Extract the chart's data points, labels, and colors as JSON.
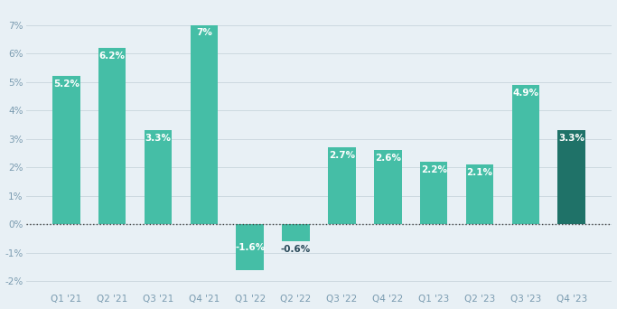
{
  "categories": [
    "Q1 '21",
    "Q2 '21",
    "Q3 '21",
    "Q4 '21",
    "Q1 '22",
    "Q2 '22",
    "Q3 '22",
    "Q4 '22",
    "Q1 '23",
    "Q2 '23",
    "Q3 '23",
    "Q4 '23"
  ],
  "values": [
    5.2,
    6.2,
    3.3,
    7.0,
    -1.6,
    -0.6,
    2.7,
    2.6,
    2.2,
    2.1,
    4.9,
    3.3
  ],
  "labels": [
    "5.2%",
    "6.2%",
    "3.3%",
    "7%",
    "-1.6%",
    "-0.6%",
    "2.7%",
    "2.6%",
    "2.2%",
    "2.1%",
    "4.9%",
    "3.3%"
  ],
  "bar_colors": [
    "#45bea6",
    "#45bea6",
    "#45bea6",
    "#45bea6",
    "#45bea6",
    "#45bea6",
    "#45bea6",
    "#45bea6",
    "#45bea6",
    "#45bea6",
    "#45bea6",
    "#1f7268"
  ],
  "label_inside_color": "white",
  "label_outside_color": "#2a4a5a",
  "background_color": "#e8f0f5",
  "ylim": [
    -2.3,
    7.7
  ],
  "yticks": [
    -2,
    -1,
    0,
    1,
    2,
    3,
    4,
    5,
    6,
    7
  ],
  "ytick_labels": [
    "-2%",
    "-1%",
    "0%",
    "1%",
    "2%",
    "3%",
    "4%",
    "5%",
    "6%",
    "7%"
  ],
  "grid_color": "#cdd9e0",
  "zero_line_color": "#444444",
  "tick_color": "#7a9bb0",
  "label_fontsize": 7.5,
  "tick_fontsize": 7.5
}
